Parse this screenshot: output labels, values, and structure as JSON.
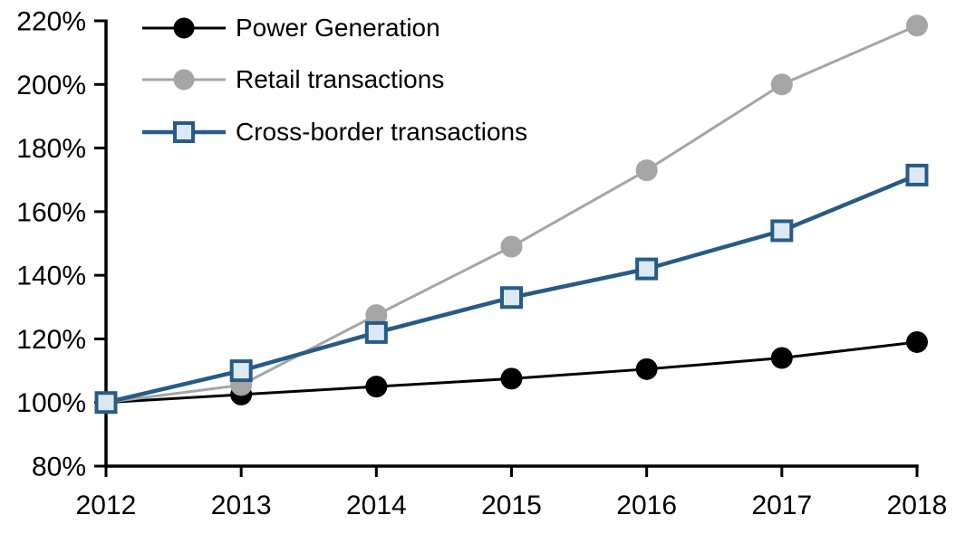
{
  "chart_data": {
    "type": "line",
    "title": "",
    "xlabel": "",
    "ylabel": "",
    "x": [
      "2012",
      "2013",
      "2014",
      "2015",
      "2016",
      "2017",
      "2018"
    ],
    "ylim": [
      80,
      220
    ],
    "ytick_step": 20,
    "ytick_suffix": "%",
    "grid": false,
    "legend_position": "top-left",
    "axis_color": "#000000",
    "series": [
      {
        "name": "Power Generation",
        "color": "#000000",
        "marker": "circle",
        "marker_fill": "#000000",
        "line_width": 3,
        "values": [
          100,
          102.5,
          105,
          107.5,
          110.5,
          114,
          119
        ]
      },
      {
        "name": "Retail transactions",
        "color": "#A5A5A5",
        "marker": "circle",
        "marker_fill": "#A5A5A5",
        "line_width": 3,
        "values": [
          100,
          105.5,
          127.5,
          149,
          173,
          200,
          218.5
        ]
      },
      {
        "name": "Cross-border transactions",
        "color": "#275B87",
        "marker": "square",
        "marker_fill": "#DCE9F5",
        "line_width": 4.5,
        "values": [
          100,
          110,
          122,
          133,
          142,
          154,
          171.5
        ]
      }
    ]
  }
}
